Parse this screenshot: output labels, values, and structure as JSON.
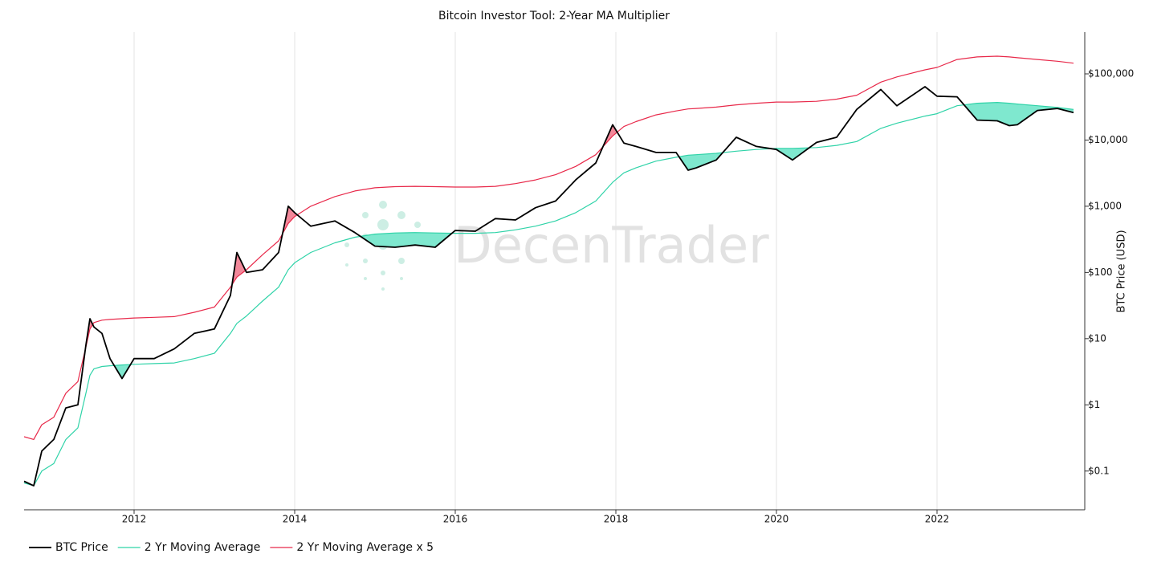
{
  "chart_data": {
    "type": "line",
    "title": "Bitcoin Investor Tool: 2-Year MA Multiplier",
    "y_label": "BTC Price (USD)",
    "watermark": "DecenTrader",
    "yscale": "log",
    "y_axis_side": "right",
    "grid": "x",
    "legend": "bottom-left",
    "fill_below": "#7fe8cf",
    "fill_above": "#f2889a",
    "xlim": [
      2010.63,
      2023.83
    ],
    "xticks": [
      2012,
      2014,
      2016,
      2018,
      2020,
      2022
    ],
    "ylim": [
      0.026,
      427000
    ],
    "yticks": [
      {
        "value": 0.1,
        "label": "$0.1"
      },
      {
        "value": 1,
        "label": "$1"
      },
      {
        "value": 10,
        "label": "$10"
      },
      {
        "value": 100,
        "label": "$100"
      },
      {
        "value": 1000,
        "label": "$1,000"
      },
      {
        "value": 10000,
        "label": "$10,000"
      },
      {
        "value": 100000,
        "label": "$100,000"
      }
    ],
    "x": [
      2010.63,
      2010.75,
      2010.85,
      2011.0,
      2011.15,
      2011.3,
      2011.4,
      2011.45,
      2011.5,
      2011.6,
      2011.7,
      2011.85,
      2012.0,
      2012.25,
      2012.5,
      2012.75,
      2013.0,
      2013.2,
      2013.28,
      2013.4,
      2013.6,
      2013.8,
      2013.92,
      2014.0,
      2014.2,
      2014.5,
      2014.75,
      2015.0,
      2015.25,
      2015.5,
      2015.75,
      2016.0,
      2016.25,
      2016.5,
      2016.75,
      2017.0,
      2017.25,
      2017.5,
      2017.75,
      2017.96,
      2018.1,
      2018.25,
      2018.5,
      2018.75,
      2018.9,
      2019.0,
      2019.25,
      2019.5,
      2019.75,
      2020.0,
      2020.2,
      2020.5,
      2020.75,
      2021.0,
      2021.3,
      2021.5,
      2021.85,
      2022.0,
      2022.25,
      2022.5,
      2022.75,
      2022.9,
      2023.0,
      2023.25,
      2023.5,
      2023.7
    ],
    "series": [
      {
        "name": "BTC Price",
        "color": "#000000",
        "values": [
          0.07,
          0.06,
          0.2,
          0.3,
          0.9,
          1,
          8,
          20,
          15,
          12,
          5,
          2.5,
          5,
          5,
          7,
          12,
          14,
          45,
          200,
          100,
          110,
          200,
          1000,
          800,
          500,
          600,
          400,
          250,
          240,
          260,
          240,
          430,
          420,
          650,
          620,
          950,
          1200,
          2500,
          4500,
          17000,
          9000,
          8000,
          6500,
          6500,
          3500,
          3800,
          5000,
          11000,
          8000,
          7200,
          5000,
          9200,
          11000,
          29000,
          58000,
          33000,
          64000,
          46000,
          45000,
          20000,
          19500,
          16500,
          17000,
          28000,
          30000,
          26000
        ]
      },
      {
        "name": "2 Yr Moving Average",
        "color": "#2fd3a8",
        "values": [
          0.066,
          0.06,
          0.1,
          0.13,
          0.3,
          0.45,
          1.5,
          2.8,
          3.5,
          3.8,
          3.9,
          4,
          4.1,
          4.2,
          4.3,
          5,
          6,
          12,
          17,
          22,
          37,
          60,
          110,
          140,
          200,
          280,
          340,
          380,
          395,
          400,
          395,
          390,
          390,
          400,
          440,
          500,
          600,
          800,
          1200,
          2300,
          3200,
          3800,
          4800,
          5500,
          5900,
          6000,
          6300,
          6800,
          7200,
          7500,
          7500,
          7700,
          8300,
          9500,
          15000,
          18000,
          23000,
          25000,
          33000,
          36000,
          37000,
          36000,
          35000,
          33000,
          31000,
          29000
        ]
      },
      {
        "name": "2 Yr Moving Average x 5",
        "color": "#e8294a",
        "values": [
          0.33,
          0.3,
          0.5,
          0.65,
          1.5,
          2.25,
          7.5,
          14,
          17.5,
          19,
          19.5,
          20,
          20.5,
          21,
          21.5,
          25,
          30,
          60,
          85,
          110,
          185,
          300,
          550,
          700,
          1000,
          1400,
          1700,
          1900,
          1975,
          2000,
          1975,
          1950,
          1950,
          2000,
          2200,
          2500,
          3000,
          4000,
          6000,
          11500,
          16000,
          19000,
          24000,
          27500,
          29500,
          30000,
          31500,
          34000,
          36000,
          37500,
          37500,
          38500,
          41500,
          47500,
          75000,
          90000,
          115000,
          125000,
          165000,
          180000,
          185000,
          180000,
          175000,
          165000,
          155000,
          145000
        ]
      }
    ]
  }
}
